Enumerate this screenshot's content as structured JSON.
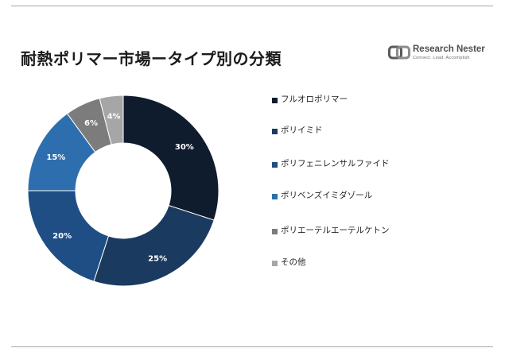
{
  "header": {
    "title": "耐熱ポリマー市場ータイプ別の分類"
  },
  "logo": {
    "name": "Research Nester",
    "tagline": "Connect. Lead. Accomplish"
  },
  "colors": {
    "rule": "#a6a6a6",
    "label_text": "#ffffff"
  },
  "chart_data": {
    "type": "pie",
    "donut": true,
    "legend_position": "right",
    "categories": [
      "フルオロポリマー",
      "ポリイミド",
      "ポリフェニレンサルファイド",
      "ポリベンズイミダゾール",
      "ポリエーテルエーテルケトン",
      "その他"
    ],
    "values": [
      30,
      25,
      20,
      15,
      6,
      4
    ],
    "data_labels": [
      "30%",
      "25%",
      "20%",
      "15%",
      "6%",
      "4%"
    ],
    "colors": [
      "#0f1c2e",
      "#1b3a60",
      "#1e4e84",
      "#2d6fae",
      "#7c7c7c",
      "#a6a6a6"
    ]
  }
}
